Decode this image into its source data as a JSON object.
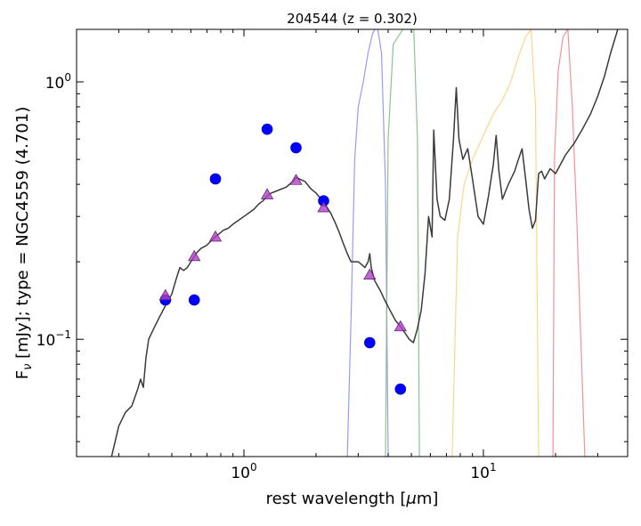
{
  "chart_data": {
    "type": "scatter",
    "title": "204544 (z = 0.302)",
    "xlabel_parts": [
      "rest wavelength [",
      "μ",
      "m]"
    ],
    "ylabel_parts": [
      "F",
      "ν",
      " [mJy];  type = NGC4559 (4.701)"
    ],
    "x_scale": "log",
    "y_scale": "log",
    "xlim": [
      0.2,
      40
    ],
    "ylim": [
      0.035,
      1.6
    ],
    "grid": false,
    "x_major_ticks": [
      {
        "value": 1,
        "base": "10",
        "exp": "0"
      },
      {
        "value": 10,
        "base": "10",
        "exp": "1"
      }
    ],
    "y_major_ticks": [
      {
        "value": 0.1,
        "base": "10",
        "exp": "−1"
      },
      {
        "value": 1,
        "base": "10",
        "exp": "0"
      }
    ],
    "colors": {
      "template": "#3a3a3a",
      "observed": "#0000ff",
      "model": "#b040c8",
      "filter_blue": "#8888ee",
      "filter_green": "#77bb77",
      "filter_orange": "#ffcc77",
      "filter_red": "#f08080"
    },
    "observed_points": [
      {
        "x": 0.47,
        "y": 0.142
      },
      {
        "x": 0.62,
        "y": 0.142
      },
      {
        "x": 0.76,
        "y": 0.42
      },
      {
        "x": 1.25,
        "y": 0.655
      },
      {
        "x": 1.65,
        "y": 0.555
      },
      {
        "x": 2.15,
        "y": 0.345
      },
      {
        "x": 3.35,
        "y": 0.097
      },
      {
        "x": 4.5,
        "y": 0.064
      }
    ],
    "model_points": [
      {
        "x": 0.47,
        "y": 0.148
      },
      {
        "x": 0.62,
        "y": 0.21
      },
      {
        "x": 0.76,
        "y": 0.25
      },
      {
        "x": 1.25,
        "y": 0.365
      },
      {
        "x": 1.65,
        "y": 0.415
      },
      {
        "x": 2.15,
        "y": 0.325
      },
      {
        "x": 3.35,
        "y": 0.178
      },
      {
        "x": 4.5,
        "y": 0.112
      }
    ],
    "template_sed": [
      [
        0.28,
        0.035
      ],
      [
        0.3,
        0.046
      ],
      [
        0.32,
        0.052
      ],
      [
        0.34,
        0.055
      ],
      [
        0.36,
        0.064
      ],
      [
        0.37,
        0.07
      ],
      [
        0.38,
        0.065
      ],
      [
        0.39,
        0.085
      ],
      [
        0.4,
        0.1
      ],
      [
        0.42,
        0.11
      ],
      [
        0.44,
        0.12
      ],
      [
        0.46,
        0.13
      ],
      [
        0.48,
        0.14
      ],
      [
        0.5,
        0.15
      ],
      [
        0.52,
        0.17
      ],
      [
        0.54,
        0.19
      ],
      [
        0.56,
        0.185
      ],
      [
        0.58,
        0.19
      ],
      [
        0.6,
        0.2
      ],
      [
        0.63,
        0.215
      ],
      [
        0.66,
        0.225
      ],
      [
        0.7,
        0.232
      ],
      [
        0.74,
        0.245
      ],
      [
        0.78,
        0.255
      ],
      [
        0.82,
        0.265
      ],
      [
        0.86,
        0.27
      ],
      [
        0.9,
        0.28
      ],
      [
        0.95,
        0.29
      ],
      [
        1.0,
        0.3
      ],
      [
        1.05,
        0.31
      ],
      [
        1.1,
        0.32
      ],
      [
        1.15,
        0.335
      ],
      [
        1.2,
        0.345
      ],
      [
        1.25,
        0.36
      ],
      [
        1.3,
        0.37
      ],
      [
        1.4,
        0.38
      ],
      [
        1.5,
        0.39
      ],
      [
        1.6,
        0.41
      ],
      [
        1.65,
        0.425
      ],
      [
        1.7,
        0.42
      ],
      [
        1.8,
        0.41
      ],
      [
        1.9,
        0.385
      ],
      [
        2.0,
        0.37
      ],
      [
        2.1,
        0.35
      ],
      [
        2.2,
        0.33
      ],
      [
        2.3,
        0.31
      ],
      [
        2.4,
        0.285
      ],
      [
        2.5,
        0.26
      ],
      [
        2.6,
        0.235
      ],
      [
        2.7,
        0.215
      ],
      [
        2.8,
        0.2
      ],
      [
        2.9,
        0.2
      ],
      [
        3.0,
        0.2
      ],
      [
        3.1,
        0.195
      ],
      [
        3.2,
        0.19
      ],
      [
        3.3,
        0.2
      ],
      [
        3.35,
        0.215
      ],
      [
        3.4,
        0.19
      ],
      [
        3.5,
        0.17
      ],
      [
        3.7,
        0.155
      ],
      [
        3.9,
        0.14
      ],
      [
        4.1,
        0.128
      ],
      [
        4.3,
        0.118
      ],
      [
        4.5,
        0.112
      ],
      [
        4.7,
        0.106
      ],
      [
        4.9,
        0.1
      ],
      [
        5.1,
        0.097
      ],
      [
        5.3,
        0.11
      ],
      [
        5.5,
        0.13
      ],
      [
        5.7,
        0.18
      ],
      [
        5.9,
        0.3
      ],
      [
        6.1,
        0.25
      ],
      [
        6.2,
        0.65
      ],
      [
        6.4,
        0.35
      ],
      [
        6.6,
        0.3
      ],
      [
        6.9,
        0.29
      ],
      [
        7.2,
        0.35
      ],
      [
        7.5,
        0.6
      ],
      [
        7.7,
        0.95
      ],
      [
        7.9,
        0.6
      ],
      [
        8.2,
        0.5
      ],
      [
        8.6,
        0.55
      ],
      [
        9.0,
        0.42
      ],
      [
        9.5,
        0.3
      ],
      [
        10.0,
        0.28
      ],
      [
        10.5,
        0.36
      ],
      [
        11.0,
        0.48
      ],
      [
        11.3,
        0.62
      ],
      [
        11.6,
        0.45
      ],
      [
        12.0,
        0.35
      ],
      [
        12.7,
        0.4
      ],
      [
        13.5,
        0.45
      ],
      [
        14.0,
        0.5
      ],
      [
        14.5,
        0.55
      ],
      [
        15.0,
        0.42
      ],
      [
        15.5,
        0.32
      ],
      [
        16.0,
        0.27
      ],
      [
        16.5,
        0.29
      ],
      [
        17.0,
        0.44
      ],
      [
        17.5,
        0.45
      ],
      [
        18.0,
        0.42
      ],
      [
        19.0,
        0.46
      ],
      [
        20.0,
        0.44
      ],
      [
        22.0,
        0.52
      ],
      [
        24.0,
        0.58
      ],
      [
        26.0,
        0.66
      ],
      [
        28.0,
        0.75
      ],
      [
        30.0,
        0.88
      ],
      [
        32.0,
        1.05
      ],
      [
        34.0,
        1.3
      ],
      [
        36.0,
        1.55
      ],
      [
        37.0,
        1.7
      ]
    ],
    "filter_curves": [
      {
        "color_key": "filter_blue",
        "points": [
          [
            2.7,
            0.035
          ],
          [
            2.8,
            0.12
          ],
          [
            2.9,
            0.5
          ],
          [
            3.0,
            0.8
          ],
          [
            3.15,
            1.0
          ],
          [
            3.3,
            1.3
          ],
          [
            3.45,
            1.55
          ],
          [
            3.6,
            1.65
          ],
          [
            3.75,
            1.3
          ],
          [
            3.9,
            0.4
          ],
          [
            4.0,
            0.035
          ]
        ]
      },
      {
        "color_key": "filter_green",
        "points": [
          [
            3.9,
            0.035
          ],
          [
            4.0,
            0.6
          ],
          [
            4.2,
            1.4
          ],
          [
            4.5,
            1.55
          ],
          [
            4.8,
            1.7
          ],
          [
            5.1,
            1.75
          ],
          [
            5.3,
            0.6
          ],
          [
            5.4,
            0.035
          ]
        ]
      },
      {
        "color_key": "filter_orange",
        "points": [
          [
            7.4,
            0.035
          ],
          [
            7.8,
            0.25
          ],
          [
            8.3,
            0.4
          ],
          [
            9.0,
            0.5
          ],
          [
            10.0,
            0.62
          ],
          [
            11.0,
            0.75
          ],
          [
            12.0,
            0.85
          ],
          [
            13.0,
            1.0
          ],
          [
            14.0,
            1.25
          ],
          [
            15.0,
            1.5
          ],
          [
            15.8,
            1.6
          ],
          [
            16.5,
            0.8
          ],
          [
            17.0,
            0.035
          ]
        ]
      },
      {
        "color_key": "filter_red",
        "points": [
          [
            19.5,
            0.035
          ],
          [
            19.8,
            0.5
          ],
          [
            20.5,
            1.1
          ],
          [
            21.5,
            1.5
          ],
          [
            22.5,
            1.6
          ],
          [
            23.5,
            0.8
          ],
          [
            24.5,
            0.3
          ],
          [
            25.5,
            0.1
          ],
          [
            26.5,
            0.035
          ]
        ]
      }
    ]
  }
}
